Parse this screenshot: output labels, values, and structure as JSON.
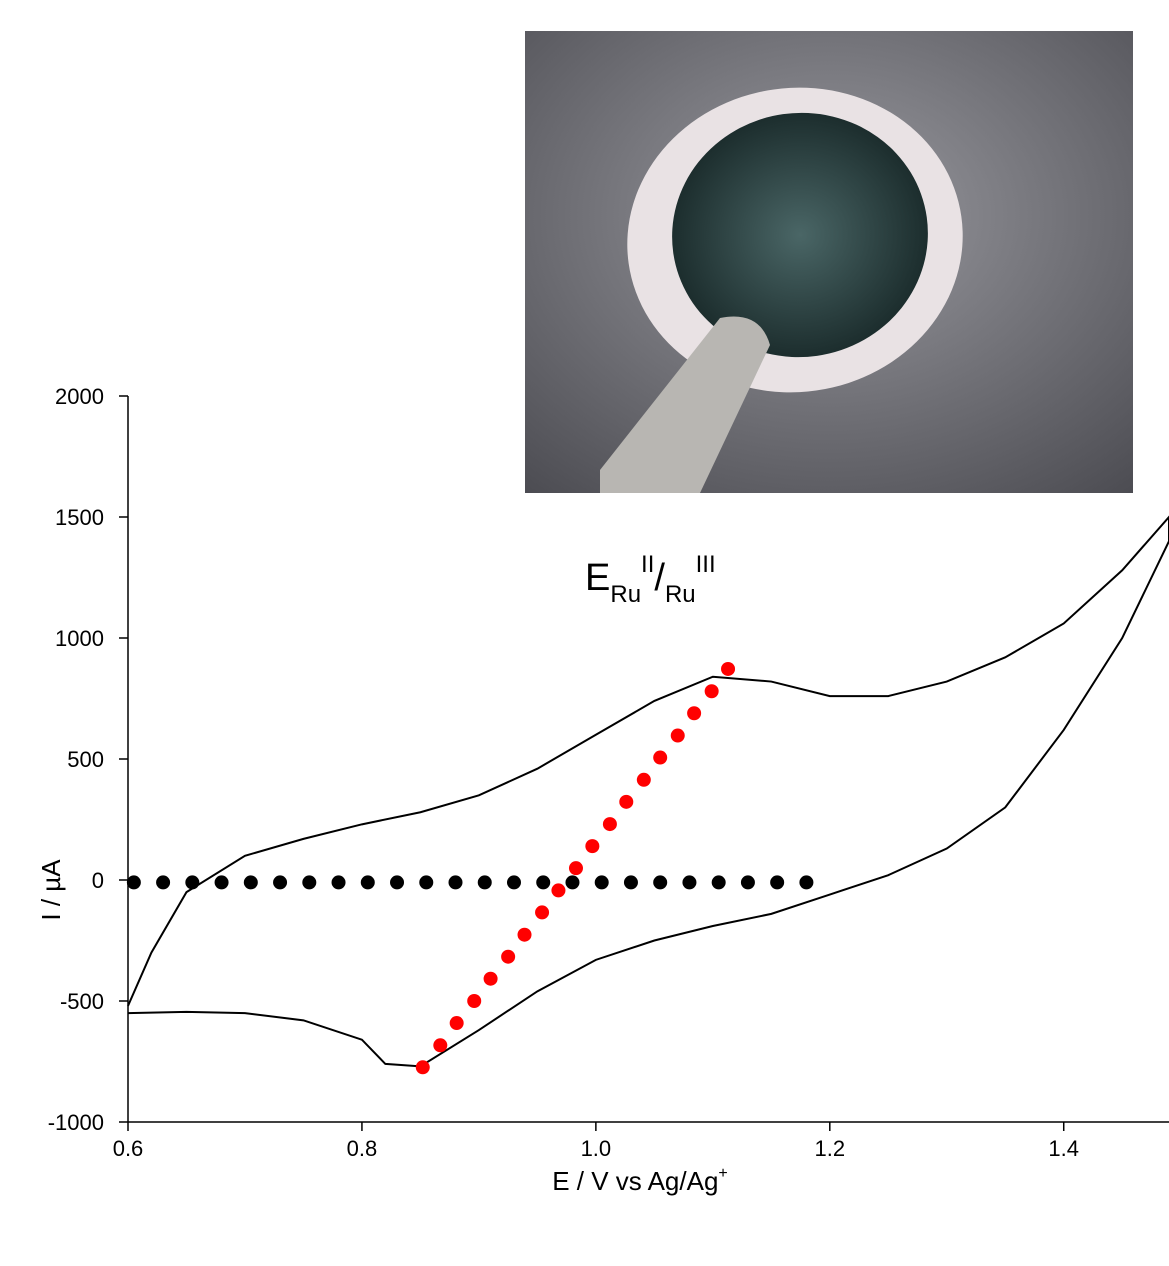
{
  "chart_data": {
    "type": "line",
    "annotation": [
      "E",
      "Ru",
      "II",
      "/",
      "Ru",
      "III"
    ],
    "x_label": [
      "E / V vs Ag/Ag",
      "+"
    ],
    "y_label": "I / µA",
    "xlim": [
      0.6,
      1.49
    ],
    "ylim": [
      -1000,
      2000
    ],
    "xticks": [
      0.6,
      0.8,
      {
        "value": 1.0,
        "label": "1.0"
      },
      1.2,
      1.4
    ],
    "yticks": [
      2000,
      1500,
      1000,
      500,
      0,
      -500,
      -1000
    ],
    "series": [
      {
        "mode": "line",
        "color": "#000000",
        "x": [
          0.6,
          0.62,
          0.65,
          0.7,
          0.75,
          0.8,
          0.85,
          0.9,
          0.95,
          1.0,
          1.05,
          1.1,
          1.15,
          1.2,
          1.25,
          1.3,
          1.35,
          1.4,
          1.45,
          1.49,
          1.49,
          1.45,
          1.4,
          1.35,
          1.3,
          1.25,
          1.2,
          1.15,
          1.1,
          1.05,
          1.0,
          0.95,
          0.9,
          0.85,
          0.82,
          0.8,
          0.75,
          0.7,
          0.65,
          0.6
        ],
        "values": [
          -520,
          -300,
          -50,
          100,
          170,
          230,
          280,
          350,
          460,
          600,
          740,
          840,
          820,
          760,
          760,
          820,
          920,
          1060,
          1280,
          1500,
          1400,
          1000,
          620,
          300,
          130,
          20,
          -60,
          -140,
          -190,
          -250,
          -330,
          -460,
          -620,
          -770,
          -760,
          -660,
          -580,
          -550,
          -545,
          -550
        ]
      },
      {
        "mode": "markers",
        "color": "#000000",
        "x": [
          0.605,
          0.63,
          0.655,
          0.68,
          0.705,
          0.73,
          0.755,
          0.78,
          0.805,
          0.83,
          0.855,
          0.88,
          0.905,
          0.93,
          0.955,
          0.98,
          1.005,
          1.03,
          1.055,
          1.08,
          1.105,
          1.13,
          1.155,
          1.18
        ],
        "values": [
          -10,
          -10,
          -10,
          -10,
          -10,
          -10,
          -10,
          -10,
          -10,
          -10,
          -10,
          -10,
          -10,
          -10,
          -10,
          -10,
          -10,
          -10,
          -10,
          -10,
          -10,
          -10,
          -10,
          -10
        ]
      },
      {
        "mode": "markers",
        "color": "#ff0000",
        "x": [
          0.852,
          0.867,
          0.881,
          0.896,
          0.91,
          0.925,
          0.939,
          0.954,
          0.968,
          0.983,
          0.997,
          1.012,
          1.026,
          1.041,
          1.055,
          1.07,
          1.084,
          1.099,
          1.113
        ],
        "values": [
          -774,
          -683,
          -591,
          -500,
          -408,
          -317,
          -226,
          -134,
          -43,
          49,
          140,
          231,
          323,
          414,
          506,
          597,
          689,
          780,
          872
        ]
      }
    ]
  }
}
